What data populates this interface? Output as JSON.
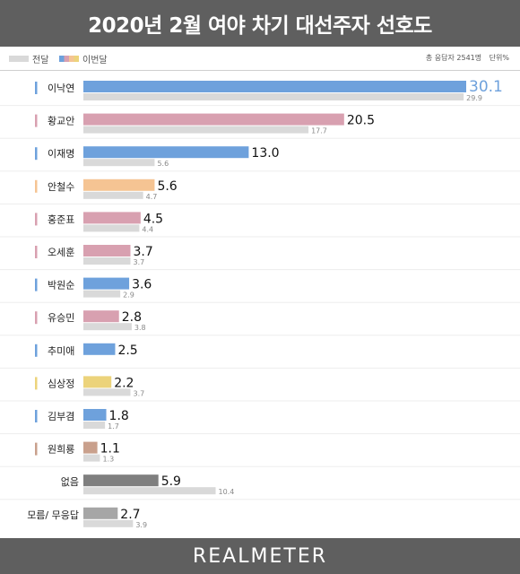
{
  "header": {
    "title": "2020년 2월 여야 차기 대선주자 선호도"
  },
  "legend": {
    "prev_label": "전달",
    "curr_label": "이번달",
    "respondents": "총 응답자 2541명",
    "unit": "단위%"
  },
  "footer": {
    "brand": "REALMETER"
  },
  "colors": {
    "blue": "#6ea1dc",
    "pink": "#d8a0b0",
    "orange": "#f5c493",
    "yellow": "#ecd37b",
    "brown": "#c9a08c",
    "darkgray": "#7f7f7f",
    "midgray": "#a6a6a6",
    "prev": "#d9d9d9"
  },
  "chart_data": {
    "type": "bar",
    "orientation": "horizontal",
    "title": "2020년 2월 여야 차기 대선주자 선호도",
    "xlim": [
      0,
      30.1
    ],
    "categories": [
      "이낙연",
      "황교안",
      "이재명",
      "안철수",
      "홍준표",
      "오세훈",
      "박원순",
      "유승민",
      "추미애",
      "심상정",
      "김부겸",
      "원희룡",
      "없음",
      "모름/ 무응답"
    ],
    "series": [
      {
        "name": "이번달",
        "values": [
          30.1,
          20.5,
          13.0,
          5.6,
          4.5,
          3.7,
          3.6,
          2.8,
          2.5,
          2.2,
          1.8,
          1.1,
          5.9,
          2.7
        ],
        "labels": [
          "30.1",
          "20.5",
          "13.0",
          "5.6",
          "4.5",
          "3.7",
          "3.6",
          "2.8",
          "2.5",
          "2.2",
          "1.8",
          "1.1",
          "5.9",
          "2.7"
        ],
        "colors": [
          "blue",
          "pink",
          "blue",
          "orange",
          "pink",
          "pink",
          "blue",
          "pink",
          "blue",
          "yellow",
          "blue",
          "brown",
          "darkgray",
          "midgray"
        ]
      },
      {
        "name": "전달",
        "values": [
          29.9,
          17.7,
          5.6,
          4.7,
          4.4,
          3.7,
          2.9,
          3.8,
          null,
          3.7,
          1.7,
          1.3,
          10.4,
          3.9
        ],
        "labels": [
          "29.9",
          "17.7",
          "5.6",
          "4.7",
          "4.4",
          "3.7",
          "2.9",
          "3.8",
          "",
          "3.7",
          "1.7",
          "1.3",
          "10.4",
          "3.9"
        ]
      }
    ],
    "grid": false,
    "legend": "top-left"
  }
}
